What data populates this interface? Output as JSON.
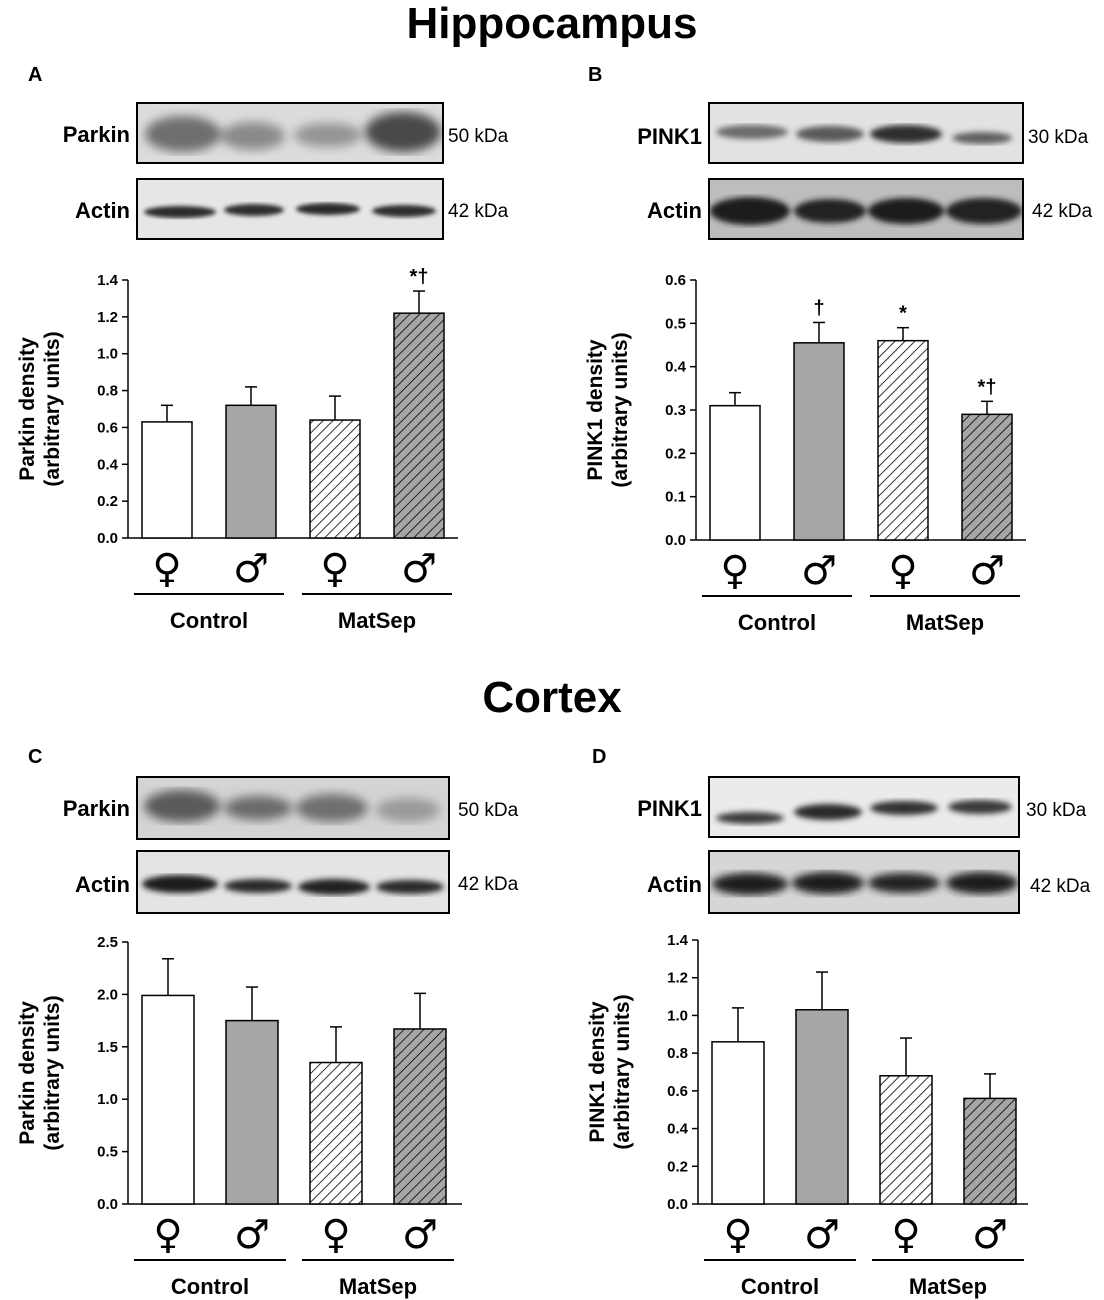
{
  "titles": {
    "hippocampus": "Hippocampus",
    "cortex": "Cortex"
  },
  "colors": {
    "white_bar": "#ffffff",
    "gray_bar": "#a6a6a6",
    "hatch_bg_white": "#ffffff",
    "hatch_bg_gray": "#a6a6a6",
    "stroke": "#000000"
  },
  "panels": [
    {
      "letter": "A",
      "protein": "Parkin",
      "actin": "Actin",
      "protein_kda": "50 kDa",
      "actin_kda": "42 kDa"
    },
    {
      "letter": "B",
      "protein": "PINK1",
      "actin": "Actin",
      "protein_kda": "30 kDa",
      "actin_kda": "42 kDa"
    },
    {
      "letter": "C",
      "protein": "Parkin",
      "actin": "Actin",
      "protein_kda": "50 kDa",
      "actin_kda": "42 kDa"
    },
    {
      "letter": "D",
      "protein": "PINK1",
      "actin": "Actin",
      "protein_kda": "30 kDa",
      "actin_kda": "42 kDa"
    }
  ],
  "chart_data": [
    {
      "type": "bar",
      "panel": "A",
      "ylabel": [
        "Parkin density",
        "(arbitrary units)"
      ],
      "ylim": [
        0,
        1.4
      ],
      "yticks": [
        "0.0",
        "0.2",
        "0.4",
        "0.6",
        "0.8",
        "1.0",
        "1.2",
        "1.4"
      ],
      "categories": [
        "♀",
        "♂",
        "♀",
        "♂"
      ],
      "groups": [
        "Control",
        "MatSep"
      ],
      "values": [
        0.63,
        0.72,
        0.64,
        1.22
      ],
      "errors": [
        0.09,
        0.1,
        0.13,
        0.12
      ],
      "fills": [
        "white",
        "gray",
        "hatch-white",
        "hatch-gray"
      ],
      "annotations": [
        "",
        "",
        "",
        "*†"
      ]
    },
    {
      "type": "bar",
      "panel": "B",
      "ylabel": [
        "PINK1 density",
        "(arbitrary units)"
      ],
      "ylim": [
        0,
        0.6
      ],
      "yticks": [
        "0.0",
        "0.1",
        "0.2",
        "0.3",
        "0.4",
        "0.5",
        "0.6"
      ],
      "categories": [
        "♀",
        "♂",
        "♀",
        "♂"
      ],
      "groups": [
        "Control",
        "MatSep"
      ],
      "values": [
        0.31,
        0.455,
        0.46,
        0.29
      ],
      "errors": [
        0.03,
        0.047,
        0.03,
        0.03
      ],
      "fills": [
        "white",
        "gray",
        "hatch-white",
        "hatch-gray"
      ],
      "annotations": [
        "",
        "†",
        "*",
        "*†"
      ]
    },
    {
      "type": "bar",
      "panel": "C",
      "ylabel": [
        "Parkin density",
        "(arbitrary units)"
      ],
      "ylim": [
        0,
        2.5
      ],
      "yticks": [
        "0.0",
        "0.5",
        "1.0",
        "1.5",
        "2.0",
        "2.5"
      ],
      "categories": [
        "♀",
        "♂",
        "♀",
        "♂"
      ],
      "groups": [
        "Control",
        "MatSep"
      ],
      "values": [
        1.99,
        1.75,
        1.35,
        1.67
      ],
      "errors": [
        0.35,
        0.32,
        0.34,
        0.34
      ],
      "fills": [
        "white",
        "gray",
        "hatch-white",
        "hatch-gray"
      ],
      "annotations": [
        "",
        "",
        "",
        ""
      ]
    },
    {
      "type": "bar",
      "panel": "D",
      "ylabel": [
        "PINK1 density",
        "(arbitrary units)"
      ],
      "ylim": [
        0,
        1.4
      ],
      "yticks": [
        "0.0",
        "0.2",
        "0.4",
        "0.6",
        "0.8",
        "1.0",
        "1.2",
        "1.4"
      ],
      "categories": [
        "♀",
        "♂",
        "♀",
        "♂"
      ],
      "groups": [
        "Control",
        "MatSep"
      ],
      "values": [
        0.86,
        1.03,
        0.68,
        0.56
      ],
      "errors": [
        0.18,
        0.2,
        0.2,
        0.13
      ],
      "fills": [
        "white",
        "gray",
        "hatch-white",
        "hatch-gray"
      ],
      "annotations": [
        "",
        "",
        "",
        ""
      ]
    }
  ]
}
